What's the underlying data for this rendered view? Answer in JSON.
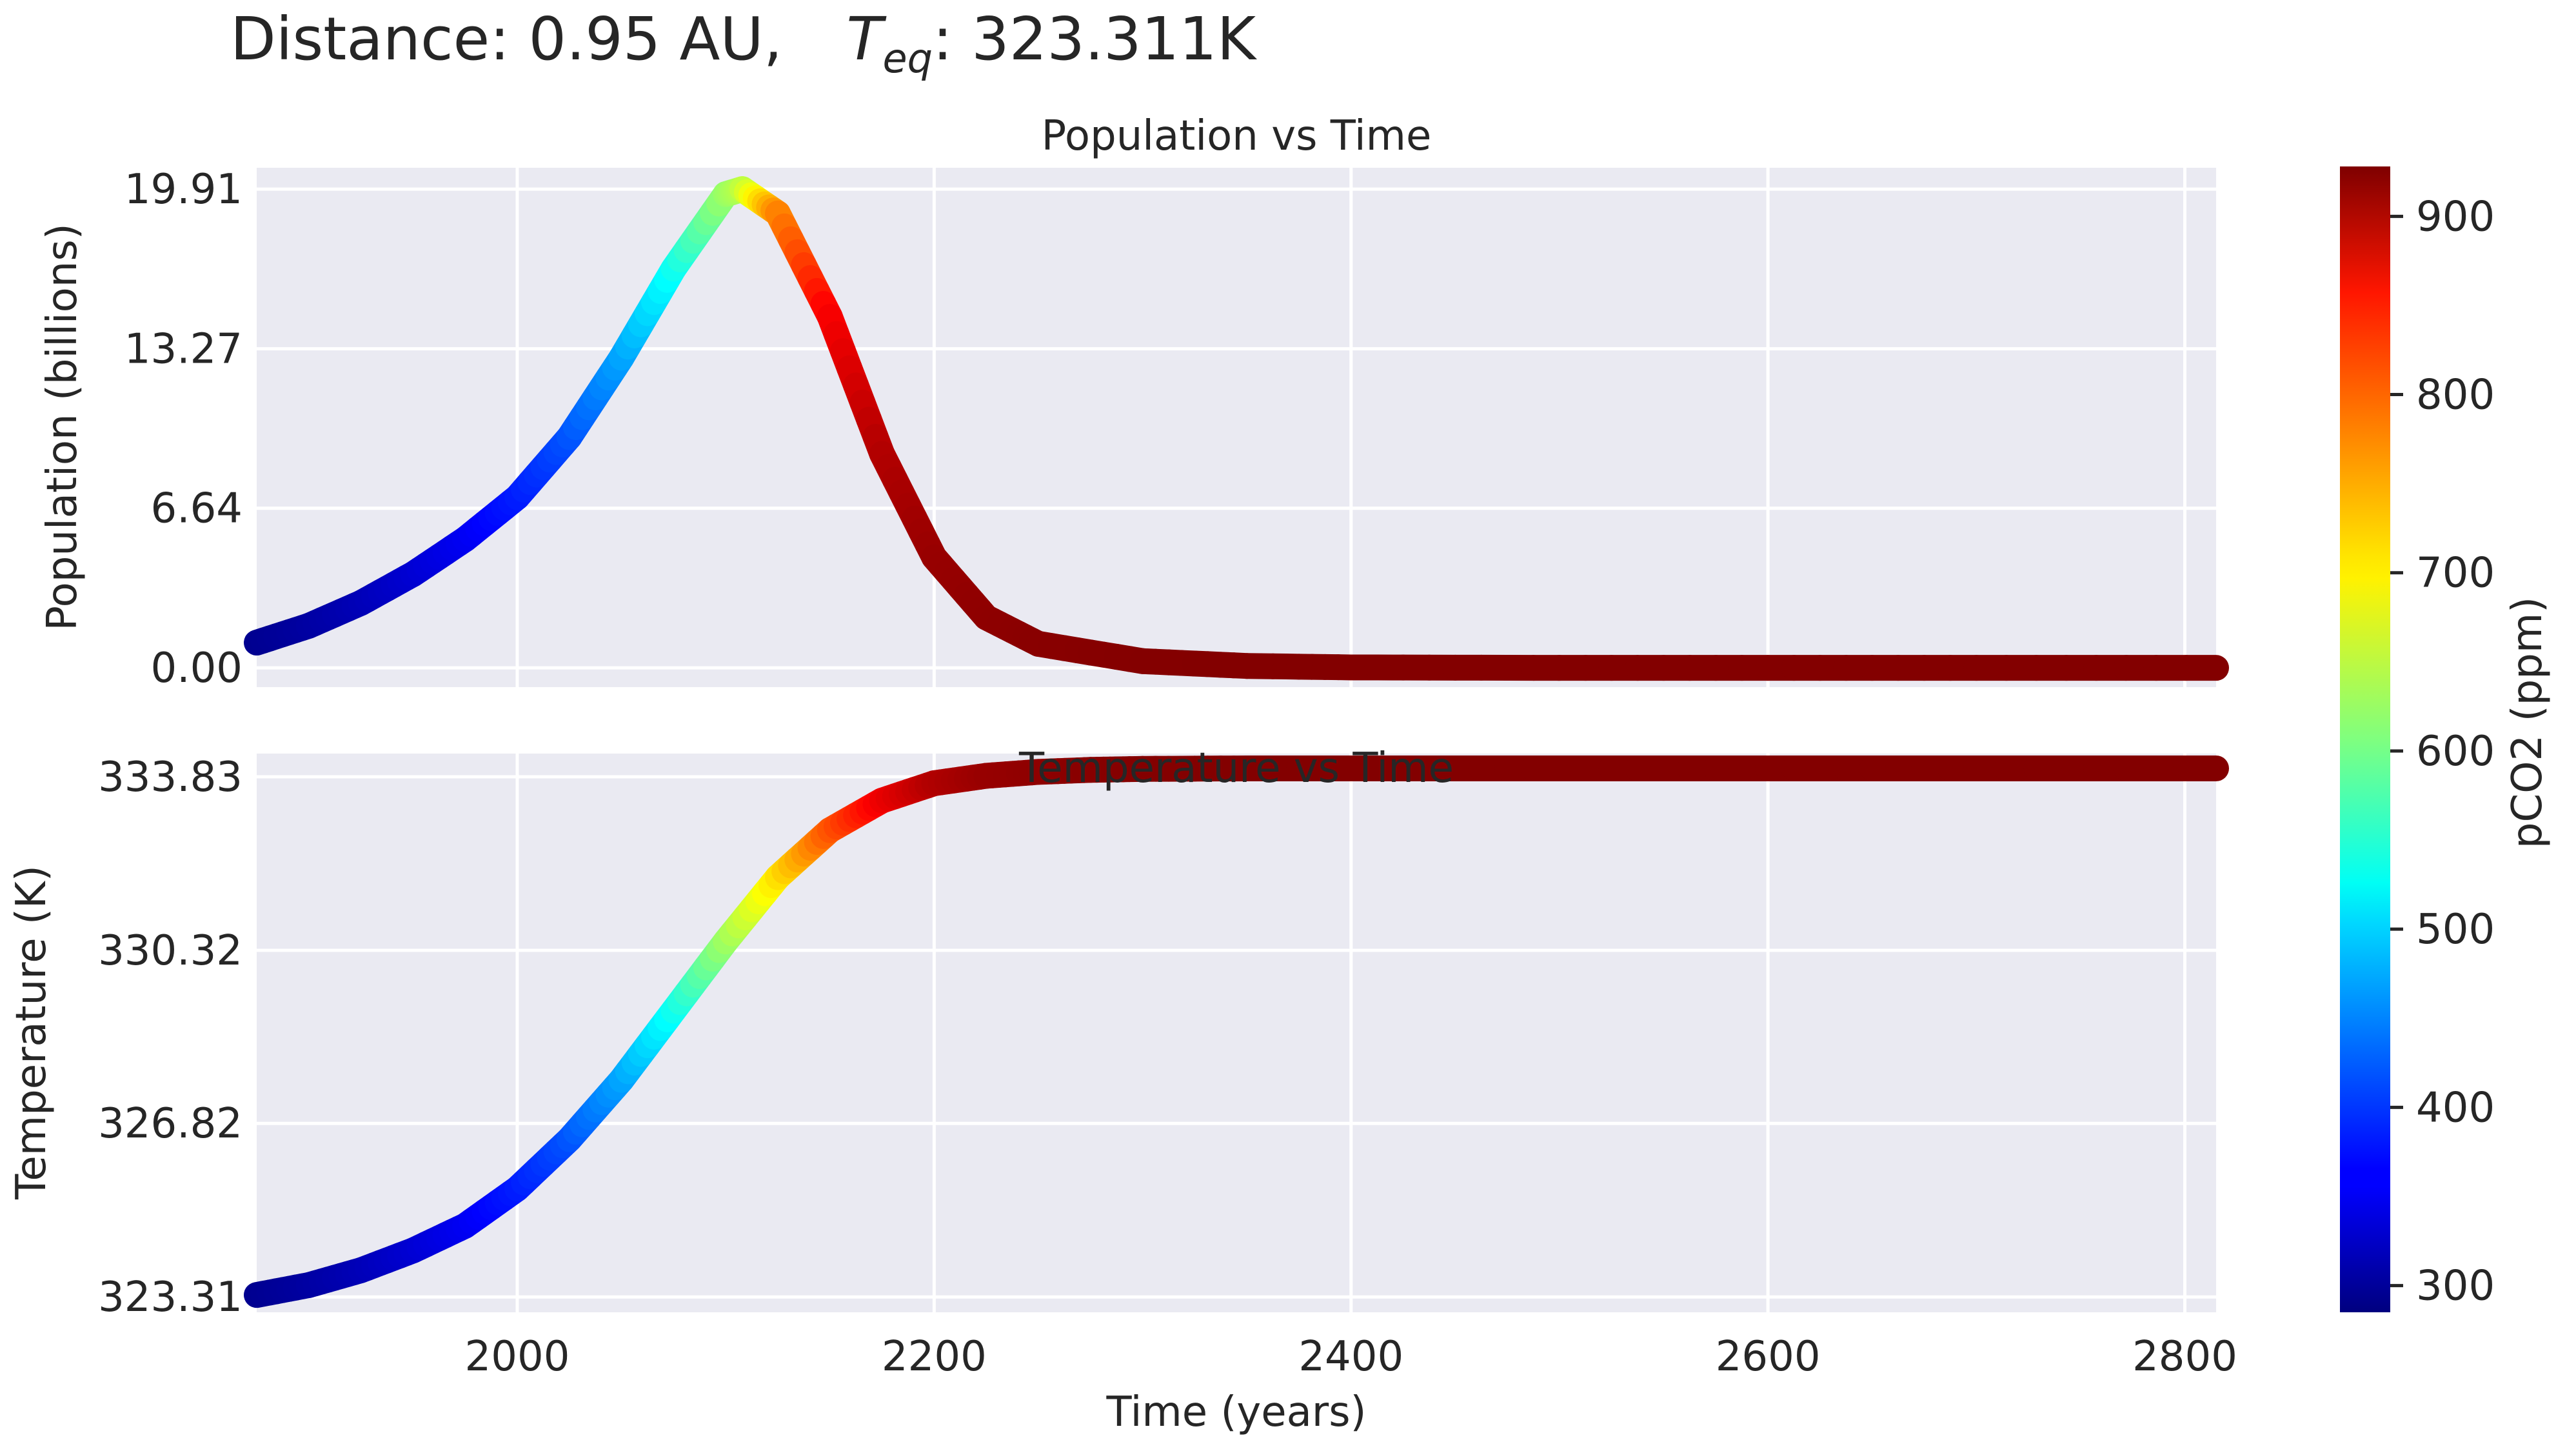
{
  "figure": {
    "suptitle_prefix": "Distance: 0.95 AU,",
    "teq_symbol": "T",
    "teq_subscript": "eq",
    "teq_value": ": 323.311K"
  },
  "chart_data": [
    {
      "type": "line",
      "title": "Population vs Time",
      "xlabel": "",
      "ylabel": "Population (billions)",
      "xlim": [
        1875,
        2815
      ],
      "ylim": [
        -0.8,
        20.8
      ],
      "yticks": [
        0.0,
        6.64,
        13.27,
        19.91
      ],
      "ytick_labels": [
        "0.00",
        "6.64",
        "13.27",
        "19.91"
      ],
      "xticks": [
        2000,
        2200,
        2400,
        2600,
        2800
      ],
      "xtick_labels_visible": false,
      "grid": true,
      "x": [
        1875,
        1900,
        1925,
        1950,
        1975,
        2000,
        2025,
        2050,
        2075,
        2100,
        2108,
        2125,
        2150,
        2175,
        2200,
        2225,
        2250,
        2300,
        2350,
        2400,
        2500,
        2600,
        2700,
        2815
      ],
      "y": [
        1.05,
        1.75,
        2.7,
        3.9,
        5.35,
        7.1,
        9.6,
        12.9,
        16.6,
        19.7,
        19.91,
        18.9,
        14.6,
        8.9,
        4.6,
        2.1,
        1.0,
        0.28,
        0.08,
        0.02,
        0.0,
        0.0,
        0.0,
        0.0
      ],
      "color_values": [
        295,
        305,
        318,
        335,
        355,
        380,
        415,
        465,
        530,
        620,
        640,
        760,
        850,
        895,
        912,
        918,
        922,
        925,
        926,
        926,
        926,
        926,
        926,
        926
      ]
    },
    {
      "type": "line",
      "title": "Temperature vs Time",
      "xlabel": "Time (years)",
      "ylabel": "Temperature (K)",
      "xlim": [
        1875,
        2815
      ],
      "ylim": [
        323.0,
        334.3
      ],
      "yticks": [
        323.31,
        326.82,
        330.32,
        333.83
      ],
      "ytick_labels": [
        "323.31",
        "326.82",
        "330.32",
        "333.83"
      ],
      "xticks": [
        2000,
        2200,
        2400,
        2600,
        2800
      ],
      "xtick_labels": [
        "2000",
        "2200",
        "2400",
        "2600",
        "2800"
      ],
      "grid": true,
      "x": [
        1875,
        1900,
        1925,
        1950,
        1975,
        2000,
        2025,
        2050,
        2075,
        2100,
        2125,
        2150,
        2175,
        2200,
        2225,
        2250,
        2275,
        2300,
        2350,
        2400,
        2500,
        2600,
        2700,
        2815
      ],
      "y": [
        323.35,
        323.55,
        323.85,
        324.25,
        324.75,
        325.5,
        326.5,
        327.7,
        329.1,
        330.5,
        331.8,
        332.75,
        333.35,
        333.7,
        333.85,
        333.93,
        333.97,
        333.99,
        334.0,
        334.0,
        334.0,
        334.0,
        334.0,
        334.0
      ],
      "color_values": [
        295,
        305,
        318,
        335,
        355,
        380,
        415,
        465,
        530,
        620,
        700,
        790,
        855,
        895,
        912,
        918,
        922,
        925,
        926,
        926,
        926,
        926,
        926,
        926
      ]
    }
  ],
  "colorbar": {
    "label": "pCO2 (ppm)",
    "colormap": "jet",
    "range": [
      285,
      928
    ],
    "ticks": [
      300,
      400,
      500,
      600,
      700,
      800,
      900
    ],
    "tick_labels": [
      "300",
      "400",
      "500",
      "600",
      "700",
      "800",
      "900"
    ]
  },
  "colors": {
    "axes_background": "#EAEAF2",
    "grid": "#FFFFFF",
    "text": "#262626"
  }
}
